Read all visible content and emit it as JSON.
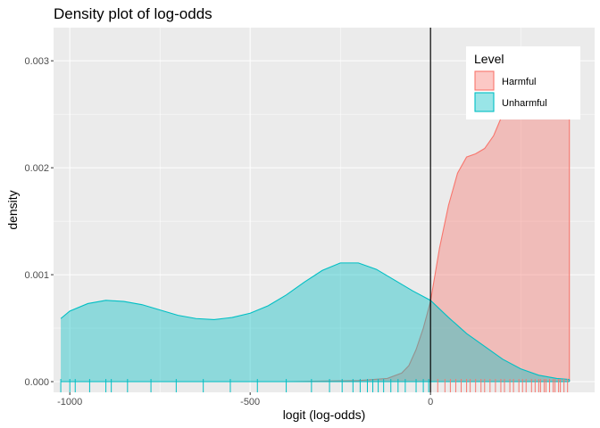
{
  "chart_data": {
    "type": "area",
    "title": "Density plot of log-odds",
    "xlabel": "logit (log-odds)",
    "ylabel": "density",
    "xlim": [
      -1045,
      455
    ],
    "ylim": [
      -0.0001,
      0.00331
    ],
    "x_ticks": [
      -1000,
      -500,
      0
    ],
    "x_tick_labels": [
      "-1000",
      "-500",
      "0"
    ],
    "y_ticks": [
      0,
      0.001,
      0.002,
      0.003
    ],
    "y_tick_labels": [
      "0.000",
      "0.001",
      "0.002",
      "0.003"
    ],
    "vline_x": 0,
    "grid": true,
    "legend": {
      "title": "Level",
      "position": "top-right",
      "entries": [
        "Harmful",
        "Unharmful"
      ]
    },
    "colors": {
      "harmful_line": "#F8766D",
      "harmful_fill": "#F8766D",
      "unharmful_line": "#00BFC4",
      "unharmful_fill": "#00BFC4",
      "panel": "#EBEBEB",
      "grid": "#FFFFFF"
    },
    "series": [
      {
        "name": "Harmful",
        "x": [
          -1025,
          -800,
          -600,
          -400,
          -200,
          -120,
          -80,
          -60,
          -40,
          -20,
          0,
          25,
          50,
          75,
          100,
          125,
          150,
          175,
          200,
          225,
          250,
          275,
          300,
          325,
          350,
          375,
          385
        ],
        "y": [
          0.0,
          0.0,
          0.0,
          0.0,
          1e-05,
          3e-05,
          8e-05,
          0.00015,
          0.0003,
          0.0005,
          0.00075,
          0.00125,
          0.00165,
          0.00195,
          0.0021,
          0.00213,
          0.00218,
          0.0023,
          0.0025,
          0.0027,
          0.0029,
          0.00305,
          0.00312,
          0.003,
          0.0028,
          0.0026,
          0.00245
        ]
      },
      {
        "name": "Unharmful",
        "x": [
          -1025,
          -1000,
          -950,
          -900,
          -850,
          -800,
          -750,
          -700,
          -650,
          -600,
          -550,
          -500,
          -450,
          -400,
          -350,
          -300,
          -250,
          -200,
          -150,
          -100,
          -50,
          0,
          50,
          100,
          150,
          200,
          250,
          300,
          350,
          385
        ],
        "y": [
          0.00059,
          0.00066,
          0.00073,
          0.00076,
          0.00075,
          0.00072,
          0.00067,
          0.00062,
          0.00059,
          0.00058,
          0.0006,
          0.00064,
          0.00071,
          0.00081,
          0.00093,
          0.00104,
          0.00111,
          0.00111,
          0.00105,
          0.00095,
          0.00085,
          0.00076,
          0.0006,
          0.00045,
          0.00033,
          0.00021,
          0.00012,
          6e-05,
          3e-05,
          2e-05
        ]
      }
    ],
    "rug": {
      "Unharmful": [
        -1025,
        -1000,
        -985,
        -945,
        -900,
        -885,
        -840,
        -775,
        -705,
        -630,
        -555,
        -480,
        -400,
        -330,
        -280,
        -245,
        -215,
        -195,
        -175,
        -160,
        -145,
        -130,
        -110,
        -90,
        -70,
        -40,
        -20,
        -5
      ],
      "Harmful": [
        20,
        40,
        55,
        70,
        85,
        100,
        110,
        125,
        140,
        150,
        165,
        180,
        195,
        205,
        220,
        230,
        245,
        255,
        265,
        280,
        290,
        300,
        305,
        315,
        320,
        330,
        340,
        345,
        355,
        360,
        370,
        380
      ]
    }
  }
}
